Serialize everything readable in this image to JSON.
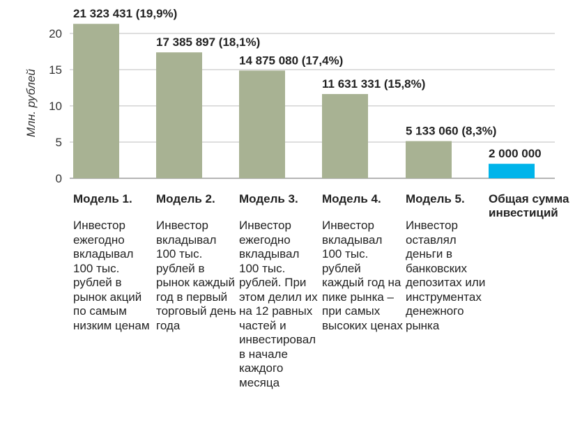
{
  "chart_data": {
    "type": "bar",
    "ylabel": "Млн. рублей",
    "ylim": [
      0,
      22
    ],
    "yticks": [
      0,
      5,
      10,
      15,
      20
    ],
    "grid": true,
    "categories": [
      "Модель 1.",
      "Модель 2.",
      "Модель 3.",
      "Модель 4.",
      "Модель 5.",
      "Общая сумма инвестиций"
    ],
    "values": [
      21.323431,
      17.385897,
      14.87508,
      11.631331,
      5.13306,
      2.0
    ],
    "data_labels": [
      "21 323 431 (19,9%)",
      "17 385 897 (18,1%)",
      "14 875 080 (17,4%)",
      "11 631 331 (15,8%)",
      "5 133 060 (8,3%)",
      "2 000 000"
    ],
    "descriptions": [
      "Инвестор ежегодно вкладывал 100 тыс. рублей в рынок акций по самым низким ценам",
      "Инвестор вкладывал 100 тыс. рублей в рынок каждый год в первый торговый день года",
      "Инвестор ежегодно вкладывал 100 тыс. рублей. При этом делил их на 12 равных частей и инвестировал в начале каждого месяца",
      "Инвестор вкладывал 100 тыс. рублей каждый год на пике рынка – при самых высоких ценах",
      "Инвестор оставлял деньги в банковских депозитах или инструментах денежного рынка",
      ""
    ],
    "colors": [
      "#a8b293",
      "#a8b293",
      "#a8b293",
      "#a8b293",
      "#a8b293",
      "#00b4ea"
    ]
  }
}
